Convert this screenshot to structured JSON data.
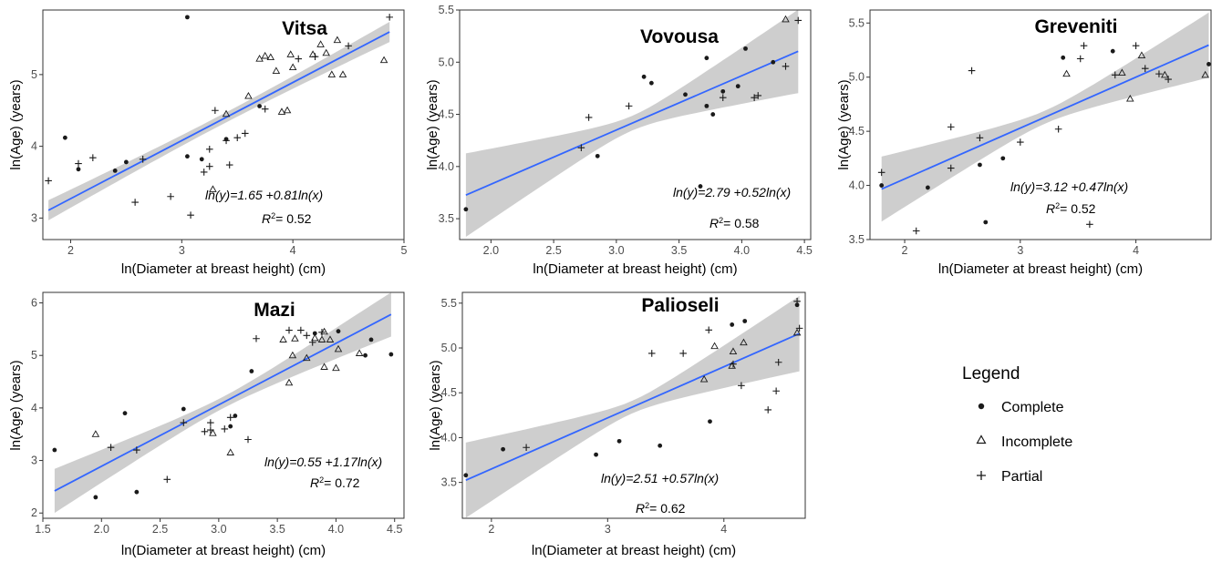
{
  "legend": {
    "title": "Legend",
    "items": [
      {
        "label": "Complete",
        "marker": "dot"
      },
      {
        "label": "Incomplete",
        "marker": "triangle"
      },
      {
        "label": "Partial",
        "marker": "plus"
      }
    ]
  },
  "colors": {
    "fit_line": "#3366ff",
    "ci_band": "#bebebe",
    "points": "#1a1a1a",
    "axis_text": "#4d4d4d"
  },
  "chart_data": [
    {
      "type": "scatter",
      "title": "Vitsa",
      "xlabel": "ln(Diameter at breast height) (cm)",
      "ylabel": "ln(Age) (years)",
      "xlim": [
        1.75,
        5.0
      ],
      "ylim": [
        2.7,
        5.9
      ],
      "xticks": [
        2,
        3,
        4,
        5
      ],
      "yticks": [
        3,
        4,
        5
      ],
      "equation": "ln(y)=1.65 +0.81ln(x)",
      "r2_label": "R",
      "r2_sup": "2",
      "r2_value": "= 0.52",
      "fit": {
        "intercept": 1.65,
        "slope": 0.81,
        "ci_end": 0.14,
        "ci_mid": 0.07
      },
      "points": [
        {
          "x": 1.95,
          "y": 4.12,
          "m": "dot"
        },
        {
          "x": 2.07,
          "y": 3.68,
          "m": "dot"
        },
        {
          "x": 2.4,
          "y": 3.66,
          "m": "dot"
        },
        {
          "x": 2.5,
          "y": 3.78,
          "m": "dot"
        },
        {
          "x": 3.05,
          "y": 3.86,
          "m": "dot"
        },
        {
          "x": 3.18,
          "y": 3.82,
          "m": "dot"
        },
        {
          "x": 3.4,
          "y": 4.1,
          "m": "dot"
        },
        {
          "x": 3.7,
          "y": 4.56,
          "m": "dot"
        },
        {
          "x": 3.05,
          "y": 5.8,
          "m": "dot"
        },
        {
          "x": 1.8,
          "y": 3.52,
          "m": "plus"
        },
        {
          "x": 2.07,
          "y": 3.76,
          "m": "plus"
        },
        {
          "x": 2.2,
          "y": 3.84,
          "m": "plus"
        },
        {
          "x": 2.58,
          "y": 3.22,
          "m": "plus"
        },
        {
          "x": 2.65,
          "y": 3.82,
          "m": "plus"
        },
        {
          "x": 2.9,
          "y": 3.3,
          "m": "plus"
        },
        {
          "x": 3.08,
          "y": 3.04,
          "m": "plus"
        },
        {
          "x": 3.2,
          "y": 3.64,
          "m": "plus"
        },
        {
          "x": 3.25,
          "y": 3.72,
          "m": "plus"
        },
        {
          "x": 3.25,
          "y": 3.96,
          "m": "plus"
        },
        {
          "x": 3.3,
          "y": 4.5,
          "m": "plus"
        },
        {
          "x": 3.4,
          "y": 4.08,
          "m": "plus"
        },
        {
          "x": 3.43,
          "y": 3.74,
          "m": "plus"
        },
        {
          "x": 3.5,
          "y": 4.12,
          "m": "plus"
        },
        {
          "x": 3.57,
          "y": 4.18,
          "m": "plus"
        },
        {
          "x": 3.75,
          "y": 4.52,
          "m": "plus"
        },
        {
          "x": 4.05,
          "y": 5.22,
          "m": "plus"
        },
        {
          "x": 4.2,
          "y": 5.25,
          "m": "plus"
        },
        {
          "x": 4.5,
          "y": 5.4,
          "m": "plus"
        },
        {
          "x": 4.87,
          "y": 5.8,
          "m": "plus"
        },
        {
          "x": 3.28,
          "y": 3.4,
          "m": "triangle"
        },
        {
          "x": 3.4,
          "y": 4.45,
          "m": "triangle"
        },
        {
          "x": 3.6,
          "y": 4.7,
          "m": "triangle"
        },
        {
          "x": 3.7,
          "y": 5.22,
          "m": "triangle"
        },
        {
          "x": 3.75,
          "y": 5.26,
          "m": "triangle"
        },
        {
          "x": 3.8,
          "y": 5.24,
          "m": "triangle"
        },
        {
          "x": 3.85,
          "y": 5.05,
          "m": "triangle"
        },
        {
          "x": 3.9,
          "y": 4.48,
          "m": "triangle"
        },
        {
          "x": 3.95,
          "y": 4.5,
          "m": "triangle"
        },
        {
          "x": 3.98,
          "y": 5.28,
          "m": "triangle"
        },
        {
          "x": 4.0,
          "y": 5.1,
          "m": "triangle"
        },
        {
          "x": 4.18,
          "y": 5.28,
          "m": "triangle"
        },
        {
          "x": 4.25,
          "y": 5.42,
          "m": "triangle"
        },
        {
          "x": 4.3,
          "y": 5.3,
          "m": "triangle"
        },
        {
          "x": 4.35,
          "y": 5.0,
          "m": "triangle"
        },
        {
          "x": 4.4,
          "y": 5.48,
          "m": "triangle"
        },
        {
          "x": 4.45,
          "y": 5.0,
          "m": "triangle"
        },
        {
          "x": 4.82,
          "y": 5.2,
          "m": "triangle"
        }
      ]
    },
    {
      "type": "scatter",
      "title": "Vovousa",
      "xlabel": "ln(Diameter at breast height) (cm)",
      "ylabel": "ln(Age) (years)",
      "xlim": [
        1.75,
        4.55
      ],
      "ylim": [
        3.3,
        5.5
      ],
      "xticks": [
        2.0,
        2.5,
        3.0,
        3.5,
        4.0,
        4.5
      ],
      "yticks": [
        3.5,
        4.0,
        4.5,
        5.0,
        5.5
      ],
      "equation": "ln(y)=2.79 +0.52ln(x)",
      "r2_label": "R",
      "r2_sup": "2",
      "r2_value": "= 0.58",
      "fit": {
        "intercept": 2.79,
        "slope": 0.52,
        "ci_end": 0.4,
        "ci_mid": 0.07
      },
      "points": [
        {
          "x": 1.8,
          "y": 3.59,
          "m": "dot"
        },
        {
          "x": 2.85,
          "y": 4.1,
          "m": "dot"
        },
        {
          "x": 3.22,
          "y": 4.86,
          "m": "dot"
        },
        {
          "x": 3.28,
          "y": 4.8,
          "m": "dot"
        },
        {
          "x": 3.55,
          "y": 4.69,
          "m": "dot"
        },
        {
          "x": 3.67,
          "y": 3.81,
          "m": "dot"
        },
        {
          "x": 3.72,
          "y": 5.04,
          "m": "dot"
        },
        {
          "x": 3.72,
          "y": 4.58,
          "m": "dot"
        },
        {
          "x": 3.77,
          "y": 4.5,
          "m": "dot"
        },
        {
          "x": 3.85,
          "y": 4.72,
          "m": "dot"
        },
        {
          "x": 3.97,
          "y": 4.77,
          "m": "dot"
        },
        {
          "x": 4.03,
          "y": 5.13,
          "m": "dot"
        },
        {
          "x": 4.25,
          "y": 5.0,
          "m": "dot"
        },
        {
          "x": 2.72,
          "y": 4.18,
          "m": "plus"
        },
        {
          "x": 2.78,
          "y": 4.47,
          "m": "plus"
        },
        {
          "x": 3.1,
          "y": 4.58,
          "m": "plus"
        },
        {
          "x": 3.85,
          "y": 4.66,
          "m": "plus"
        },
        {
          "x": 4.1,
          "y": 4.66,
          "m": "plus"
        },
        {
          "x": 4.13,
          "y": 4.68,
          "m": "plus"
        },
        {
          "x": 4.35,
          "y": 4.96,
          "m": "plus"
        },
        {
          "x": 4.45,
          "y": 5.4,
          "m": "plus"
        },
        {
          "x": 4.35,
          "y": 5.41,
          "m": "triangle"
        }
      ]
    },
    {
      "type": "scatter",
      "title": "Greveniti",
      "xlabel": "ln(Diameter at breast height) (cm)",
      "ylabel": "ln(Age) (years)",
      "xlim": [
        1.7,
        4.65
      ],
      "ylim": [
        3.5,
        5.62
      ],
      "xticks": [
        2,
        3,
        4
      ],
      "yticks": [
        3.5,
        4.0,
        4.5,
        5.0,
        5.5
      ],
      "equation": "ln(y)=3.12 +0.47ln(x)",
      "r2_label": "R",
      "r2_sup": "2",
      "r2_value": "= 0.52",
      "fit": {
        "intercept": 3.12,
        "slope": 0.47,
        "ci_end": 0.3,
        "ci_mid": 0.06
      },
      "points": [
        {
          "x": 1.8,
          "y": 4.0,
          "m": "dot"
        },
        {
          "x": 2.2,
          "y": 3.98,
          "m": "dot"
        },
        {
          "x": 2.65,
          "y": 4.19,
          "m": "dot"
        },
        {
          "x": 2.7,
          "y": 3.66,
          "m": "dot"
        },
        {
          "x": 2.85,
          "y": 4.25,
          "m": "dot"
        },
        {
          "x": 3.37,
          "y": 5.18,
          "m": "dot"
        },
        {
          "x": 3.8,
          "y": 5.24,
          "m": "dot"
        },
        {
          "x": 4.63,
          "y": 5.12,
          "m": "dot"
        },
        {
          "x": 1.8,
          "y": 4.12,
          "m": "plus"
        },
        {
          "x": 2.1,
          "y": 3.58,
          "m": "plus"
        },
        {
          "x": 2.4,
          "y": 4.54,
          "m": "plus"
        },
        {
          "x": 2.4,
          "y": 4.16,
          "m": "plus"
        },
        {
          "x": 2.58,
          "y": 5.06,
          "m": "plus"
        },
        {
          "x": 2.65,
          "y": 4.44,
          "m": "plus"
        },
        {
          "x": 3.0,
          "y": 4.4,
          "m": "plus"
        },
        {
          "x": 3.33,
          "y": 4.52,
          "m": "plus"
        },
        {
          "x": 3.52,
          "y": 5.17,
          "m": "plus"
        },
        {
          "x": 3.55,
          "y": 5.29,
          "m": "plus"
        },
        {
          "x": 3.6,
          "y": 3.64,
          "m": "plus"
        },
        {
          "x": 3.82,
          "y": 5.02,
          "m": "plus"
        },
        {
          "x": 4.0,
          "y": 5.29,
          "m": "plus"
        },
        {
          "x": 4.08,
          "y": 5.08,
          "m": "plus"
        },
        {
          "x": 4.2,
          "y": 5.03,
          "m": "plus"
        },
        {
          "x": 4.28,
          "y": 4.98,
          "m": "plus"
        },
        {
          "x": 3.4,
          "y": 5.03,
          "m": "triangle"
        },
        {
          "x": 3.88,
          "y": 5.04,
          "m": "triangle"
        },
        {
          "x": 3.95,
          "y": 4.8,
          "m": "triangle"
        },
        {
          "x": 4.05,
          "y": 5.2,
          "m": "triangle"
        },
        {
          "x": 4.25,
          "y": 5.02,
          "m": "triangle"
        },
        {
          "x": 4.6,
          "y": 5.02,
          "m": "triangle"
        }
      ]
    },
    {
      "type": "scatter",
      "title": "Mazi",
      "xlabel": "ln(Diameter at breast height) (cm)",
      "ylabel": "ln(Age) (years)",
      "xlim": [
        1.5,
        4.58
      ],
      "ylim": [
        1.9,
        6.2
      ],
      "xticks": [
        1.5,
        2.0,
        2.5,
        3.0,
        3.5,
        4.0,
        4.5
      ],
      "yticks": [
        2,
        3,
        4,
        5,
        6
      ],
      "equation": "ln(y)=0.55 +1.17ln(x)",
      "r2_label": "R",
      "r2_sup": "2",
      "r2_value": "= 0.72",
      "fit": {
        "intercept": 0.55,
        "slope": 1.17,
        "ci_end": 0.42,
        "ci_mid": 0.11
      },
      "points": [
        {
          "x": 1.6,
          "y": 3.2,
          "m": "dot"
        },
        {
          "x": 1.95,
          "y": 2.3,
          "m": "dot"
        },
        {
          "x": 2.2,
          "y": 3.9,
          "m": "dot"
        },
        {
          "x": 2.3,
          "y": 2.4,
          "m": "dot"
        },
        {
          "x": 2.7,
          "y": 3.98,
          "m": "dot"
        },
        {
          "x": 3.1,
          "y": 3.65,
          "m": "dot"
        },
        {
          "x": 3.14,
          "y": 3.85,
          "m": "dot"
        },
        {
          "x": 3.28,
          "y": 4.7,
          "m": "dot"
        },
        {
          "x": 3.82,
          "y": 5.42,
          "m": "dot"
        },
        {
          "x": 4.02,
          "y": 5.46,
          "m": "dot"
        },
        {
          "x": 4.25,
          "y": 5.0,
          "m": "dot"
        },
        {
          "x": 4.3,
          "y": 5.3,
          "m": "dot"
        },
        {
          "x": 4.47,
          "y": 5.02,
          "m": "dot"
        },
        {
          "x": 2.08,
          "y": 3.25,
          "m": "plus"
        },
        {
          "x": 2.3,
          "y": 3.2,
          "m": "plus"
        },
        {
          "x": 2.56,
          "y": 2.64,
          "m": "plus"
        },
        {
          "x": 2.7,
          "y": 3.72,
          "m": "plus"
        },
        {
          "x": 2.88,
          "y": 3.55,
          "m": "plus"
        },
        {
          "x": 2.93,
          "y": 3.72,
          "m": "plus"
        },
        {
          "x": 2.93,
          "y": 3.58,
          "m": "plus"
        },
        {
          "x": 3.05,
          "y": 3.6,
          "m": "plus"
        },
        {
          "x": 3.1,
          "y": 3.82,
          "m": "plus"
        },
        {
          "x": 3.25,
          "y": 3.4,
          "m": "plus"
        },
        {
          "x": 3.32,
          "y": 5.32,
          "m": "plus"
        },
        {
          "x": 3.6,
          "y": 5.48,
          "m": "plus"
        },
        {
          "x": 3.7,
          "y": 5.48,
          "m": "plus"
        },
        {
          "x": 3.75,
          "y": 5.38,
          "m": "plus"
        },
        {
          "x": 3.8,
          "y": 5.25,
          "m": "plus"
        },
        {
          "x": 3.88,
          "y": 5.44,
          "m": "plus"
        },
        {
          "x": 1.95,
          "y": 3.5,
          "m": "triangle"
        },
        {
          "x": 2.95,
          "y": 3.52,
          "m": "triangle"
        },
        {
          "x": 3.1,
          "y": 3.15,
          "m": "triangle"
        },
        {
          "x": 3.55,
          "y": 5.3,
          "m": "triangle"
        },
        {
          "x": 3.6,
          "y": 4.48,
          "m": "triangle"
        },
        {
          "x": 3.63,
          "y": 5.0,
          "m": "triangle"
        },
        {
          "x": 3.65,
          "y": 5.32,
          "m": "triangle"
        },
        {
          "x": 3.75,
          "y": 4.95,
          "m": "triangle"
        },
        {
          "x": 3.82,
          "y": 5.33,
          "m": "triangle"
        },
        {
          "x": 3.88,
          "y": 5.3,
          "m": "triangle"
        },
        {
          "x": 3.9,
          "y": 5.45,
          "m": "triangle"
        },
        {
          "x": 3.9,
          "y": 4.78,
          "m": "triangle"
        },
        {
          "x": 3.95,
          "y": 5.3,
          "m": "triangle"
        },
        {
          "x": 4.0,
          "y": 4.76,
          "m": "triangle"
        },
        {
          "x": 4.02,
          "y": 5.12,
          "m": "triangle"
        },
        {
          "x": 4.2,
          "y": 5.04,
          "m": "triangle"
        }
      ]
    },
    {
      "type": "scatter",
      "title": "Palioseli",
      "xlabel": "ln(Diameter at breast height) (cm)",
      "ylabel": "ln(Age) (years)",
      "xlim": [
        1.75,
        4.7
      ],
      "ylim": [
        3.1,
        5.62
      ],
      "xticks": [
        2,
        3,
        4
      ],
      "yticks": [
        3.5,
        4.0,
        4.5,
        5.0,
        5.5
      ],
      "equation": "ln(y)=2.51 +0.57ln(x)",
      "r2_label": "R",
      "r2_sup": "2",
      "r2_value": "= 0.62",
      "fit": {
        "intercept": 2.51,
        "slope": 0.57,
        "ci_end": 0.42,
        "ci_mid": 0.07
      },
      "points": [
        {
          "x": 1.78,
          "y": 3.58,
          "m": "dot"
        },
        {
          "x": 2.1,
          "y": 3.87,
          "m": "dot"
        },
        {
          "x": 2.9,
          "y": 3.81,
          "m": "dot"
        },
        {
          "x": 3.1,
          "y": 3.96,
          "m": "dot"
        },
        {
          "x": 3.45,
          "y": 3.91,
          "m": "dot"
        },
        {
          "x": 3.88,
          "y": 4.18,
          "m": "dot"
        },
        {
          "x": 4.07,
          "y": 5.26,
          "m": "dot"
        },
        {
          "x": 4.18,
          "y": 5.3,
          "m": "dot"
        },
        {
          "x": 4.63,
          "y": 5.48,
          "m": "dot"
        },
        {
          "x": 2.3,
          "y": 3.89,
          "m": "plus"
        },
        {
          "x": 3.38,
          "y": 4.94,
          "m": "plus"
        },
        {
          "x": 3.65,
          "y": 4.94,
          "m": "plus"
        },
        {
          "x": 3.87,
          "y": 5.2,
          "m": "plus"
        },
        {
          "x": 4.08,
          "y": 4.82,
          "m": "plus"
        },
        {
          "x": 4.15,
          "y": 4.58,
          "m": "plus"
        },
        {
          "x": 4.38,
          "y": 4.31,
          "m": "plus"
        },
        {
          "x": 4.45,
          "y": 4.52,
          "m": "plus"
        },
        {
          "x": 4.47,
          "y": 4.84,
          "m": "plus"
        },
        {
          "x": 4.63,
          "y": 5.52,
          "m": "plus"
        },
        {
          "x": 4.65,
          "y": 5.22,
          "m": "plus"
        },
        {
          "x": 3.83,
          "y": 4.65,
          "m": "triangle"
        },
        {
          "x": 3.92,
          "y": 5.02,
          "m": "triangle"
        },
        {
          "x": 4.07,
          "y": 4.8,
          "m": "triangle"
        },
        {
          "x": 4.08,
          "y": 4.96,
          "m": "triangle"
        },
        {
          "x": 4.17,
          "y": 5.06,
          "m": "triangle"
        },
        {
          "x": 4.63,
          "y": 5.17,
          "m": "triangle"
        }
      ]
    }
  ]
}
